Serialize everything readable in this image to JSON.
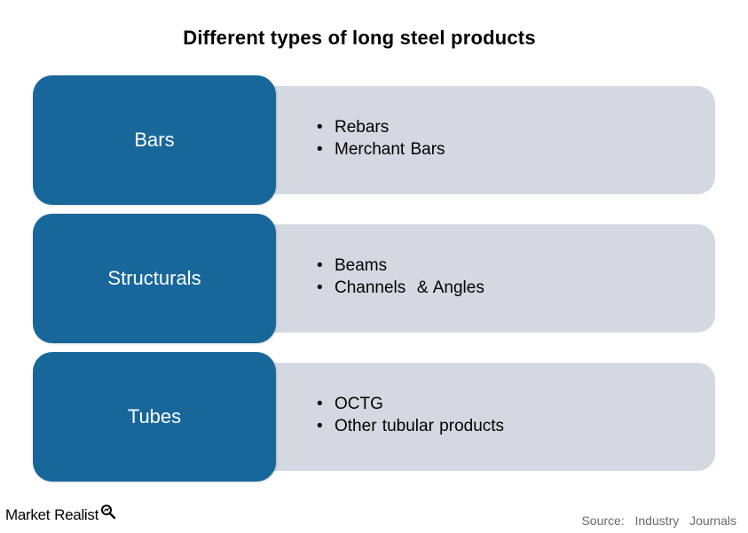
{
  "title": "Different types of long steel products",
  "colors": {
    "category_box": "#17679b",
    "detail_panel": "#d3d8e1",
    "category_text": "#ffffff"
  },
  "categories": [
    {
      "label": "Bars",
      "items": [
        "Rebars",
        "Merchant Bars"
      ]
    },
    {
      "label": "Structurals",
      "items": [
        "Beams",
        "Channels  & Angles"
      ]
    },
    {
      "label": "Tubes",
      "items": [
        "OCTG",
        "Other tubular products"
      ]
    }
  ],
  "bullet_symbol": "•",
  "footer": {
    "logo_word_1": "Market",
    "logo_word_2": "Realist",
    "logo_icon": "magnifier-icon",
    "source": "Source:  Industry  Journals"
  }
}
